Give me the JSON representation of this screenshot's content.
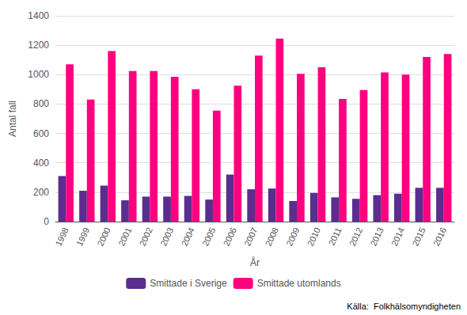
{
  "chart_data": {
    "type": "bar",
    "categories": [
      "1998",
      "1999",
      "2000",
      "2001",
      "2002",
      "2003",
      "2004",
      "2005",
      "2006",
      "2007",
      "2008",
      "2009",
      "2010",
      "2011",
      "2012",
      "2013",
      "2014",
      "2015",
      "2016"
    ],
    "series": [
      {
        "name": "Smittade i Sverige",
        "color": "#5B2D8E",
        "values": [
          310,
          210,
          245,
          145,
          170,
          170,
          175,
          150,
          320,
          220,
          225,
          140,
          195,
          165,
          155,
          180,
          190,
          230,
          230
        ]
      },
      {
        "name": "Smittade utomlands",
        "color": "#FF007F",
        "values": [
          1070,
          830,
          1160,
          1025,
          1025,
          985,
          900,
          755,
          925,
          1130,
          1245,
          1005,
          1050,
          835,
          895,
          1015,
          1000,
          1120,
          1140
        ]
      }
    ],
    "xlabel": "År",
    "ylabel": "Antal fall",
    "ylim": [
      0,
      1400
    ],
    "yticks": [
      0,
      200,
      400,
      600,
      800,
      1000,
      1200,
      1400
    ],
    "grid": true,
    "legend": "bottom",
    "annotations": [
      "Källa:  Folkhälsomyndigheten"
    ]
  }
}
